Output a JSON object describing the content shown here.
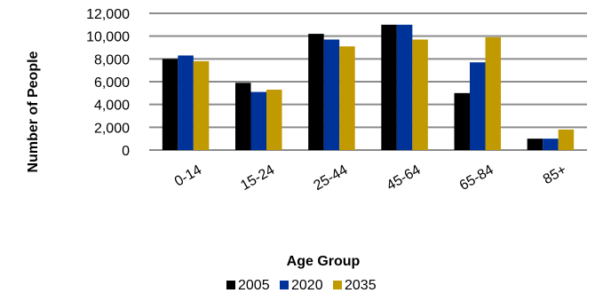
{
  "chart_data": {
    "type": "bar",
    "title": "",
    "xlabel": "Age Group",
    "ylabel": "Number of People",
    "categories": [
      "0-14",
      "15-24",
      "25-44",
      "45-64",
      "65-84",
      "85+"
    ],
    "series": [
      {
        "name": "2005",
        "color": "#000000",
        "values": [
          8000,
          5900,
          10200,
          11000,
          5000,
          1000
        ]
      },
      {
        "name": "2020",
        "color": "#003399",
        "values": [
          8300,
          5100,
          9700,
          11000,
          7700,
          1000
        ]
      },
      {
        "name": "2035",
        "color": "#C09A00",
        "values": [
          7800,
          5300,
          9100,
          9700,
          9900,
          1800
        ]
      }
    ],
    "ylim": [
      0,
      12000
    ],
    "yticks": [
      0,
      2000,
      4000,
      6000,
      8000,
      10000,
      12000
    ],
    "ytick_labels": [
      "0",
      "2,000",
      "4,000",
      "6,000",
      "8,000",
      "10,000",
      "12,000"
    ],
    "grid": true,
    "legend_position": "bottom"
  }
}
